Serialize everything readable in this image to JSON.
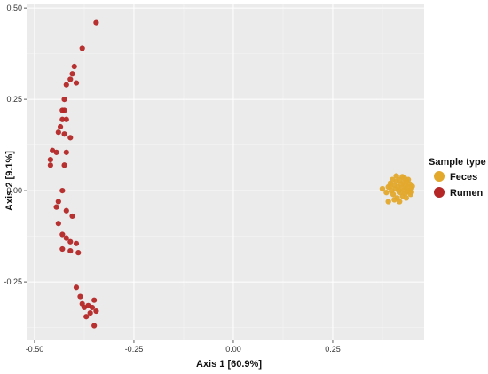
{
  "chart_data": {
    "type": "scatter",
    "title": "",
    "xlabel": "Axis 1 [60.9%]",
    "ylabel": "Axis 2 [9.1%]",
    "xlim": [
      -0.52,
      0.48
    ],
    "ylim": [
      -0.41,
      0.51
    ],
    "x_ticks": [
      -0.5,
      -0.25,
      0.0,
      0.25
    ],
    "x_tick_labels": [
      "-0.50",
      "-0.25",
      "0.00",
      "0.25"
    ],
    "y_ticks": [
      -0.25,
      0.0,
      0.25,
      0.5
    ],
    "y_tick_labels": [
      "-0.25",
      "0.00",
      "0.25",
      "0.50"
    ],
    "grid": true,
    "legend": {
      "title": "Sample type",
      "placement": "right"
    },
    "series": [
      {
        "name": "Feces",
        "color": "#E3A92D",
        "points": [
          [
            0.375,
            0.005
          ],
          [
            0.385,
            -0.005
          ],
          [
            0.39,
            0.01
          ],
          [
            0.395,
            0.02
          ],
          [
            0.398,
            0.0
          ],
          [
            0.4,
            0.03
          ],
          [
            0.402,
            -0.01
          ],
          [
            0.405,
            0.015
          ],
          [
            0.408,
            0.005
          ],
          [
            0.41,
            0.025
          ],
          [
            0.412,
            -0.02
          ],
          [
            0.414,
            0.01
          ],
          [
            0.416,
            0.0
          ],
          [
            0.418,
            0.03
          ],
          [
            0.42,
            -0.005
          ],
          [
            0.422,
            0.018
          ],
          [
            0.424,
            0.008
          ],
          [
            0.426,
            -0.015
          ],
          [
            0.428,
            0.022
          ],
          [
            0.43,
            0.002
          ],
          [
            0.432,
            -0.008
          ],
          [
            0.434,
            0.014
          ],
          [
            0.436,
            0.026
          ],
          [
            0.438,
            -0.002
          ],
          [
            0.44,
            0.01
          ],
          [
            0.442,
            0.0
          ],
          [
            0.444,
            0.018
          ],
          [
            0.446,
            -0.01
          ],
          [
            0.448,
            0.006
          ],
          [
            0.45,
            0.012
          ],
          [
            0.39,
            -0.03
          ],
          [
            0.405,
            -0.025
          ],
          [
            0.418,
            -0.03
          ],
          [
            0.43,
            0.035
          ],
          [
            0.41,
            0.04
          ],
          [
            0.435,
            -0.02
          ],
          [
            0.44,
            0.03
          ],
          [
            0.395,
            0.012
          ],
          [
            0.425,
            0.038
          ],
          [
            0.448,
            -0.004
          ]
        ]
      },
      {
        "name": "Rumen",
        "color": "#B52727",
        "points": [
          [
            -0.345,
            0.46
          ],
          [
            -0.38,
            0.39
          ],
          [
            -0.4,
            0.34
          ],
          [
            -0.405,
            0.32
          ],
          [
            -0.41,
            0.305
          ],
          [
            -0.42,
            0.29
          ],
          [
            -0.395,
            0.295
          ],
          [
            -0.425,
            0.25
          ],
          [
            -0.43,
            0.22
          ],
          [
            -0.425,
            0.22
          ],
          [
            -0.43,
            0.195
          ],
          [
            -0.42,
            0.195
          ],
          [
            -0.435,
            0.175
          ],
          [
            -0.44,
            0.16
          ],
          [
            -0.425,
            0.155
          ],
          [
            -0.41,
            0.145
          ],
          [
            -0.455,
            0.11
          ],
          [
            -0.445,
            0.105
          ],
          [
            -0.42,
            0.105
          ],
          [
            -0.46,
            0.085
          ],
          [
            -0.46,
            0.07
          ],
          [
            -0.425,
            0.07
          ],
          [
            -0.43,
            0.0
          ],
          [
            -0.44,
            -0.03
          ],
          [
            -0.445,
            -0.045
          ],
          [
            -0.42,
            -0.055
          ],
          [
            -0.405,
            -0.07
          ],
          [
            -0.44,
            -0.09
          ],
          [
            -0.43,
            -0.12
          ],
          [
            -0.42,
            -0.13
          ],
          [
            -0.41,
            -0.14
          ],
          [
            -0.395,
            -0.145
          ],
          [
            -0.43,
            -0.16
          ],
          [
            -0.41,
            -0.165
          ],
          [
            -0.39,
            -0.17
          ],
          [
            -0.395,
            -0.265
          ],
          [
            -0.385,
            -0.29
          ],
          [
            -0.38,
            -0.31
          ],
          [
            -0.375,
            -0.32
          ],
          [
            -0.365,
            -0.315
          ],
          [
            -0.36,
            -0.335
          ],
          [
            -0.37,
            -0.345
          ],
          [
            -0.355,
            -0.32
          ],
          [
            -0.35,
            -0.3
          ],
          [
            -0.345,
            -0.33
          ],
          [
            -0.35,
            -0.37
          ]
        ]
      }
    ]
  }
}
